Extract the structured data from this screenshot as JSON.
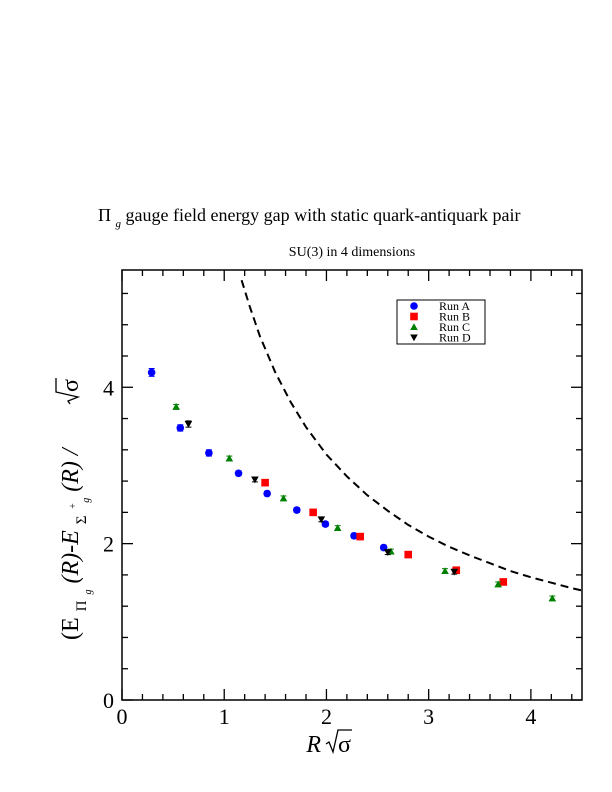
{
  "chart_data": {
    "type": "scatter",
    "title": {
      "pre": "Π",
      "sub": "g",
      "post": " gauge field energy gap with static quark-antiquark pair"
    },
    "subtitle": "SU(3) in 4 dimensions",
    "xlabel": {
      "var": "R",
      "sym": "σ"
    },
    "ylabel": {
      "open": "(E",
      "sub1": "Π",
      "sub1b": "g",
      "mid": "(R)-E",
      "sub2": "Σ",
      "sub2b": "g",
      "sup2": "+",
      "close": "(R) / ",
      "sym": "σ"
    },
    "xlim": [
      0,
      4.5
    ],
    "ylim": [
      0,
      5.5
    ],
    "xticks": [
      0,
      1,
      2,
      3,
      4
    ],
    "yticks": [
      0,
      2,
      4
    ],
    "xtick_labels": [
      "0",
      "1",
      "2",
      "3",
      "4"
    ],
    "ytick_labels": [
      "0",
      "2",
      "4"
    ],
    "legend_position": "top-right",
    "grid": false,
    "series": [
      {
        "name": "Run A",
        "marker": "circle",
        "color": "#0000ff",
        "x": [
          0.29,
          0.57,
          0.85,
          1.14,
          1.42,
          1.71,
          1.99,
          2.27,
          2.56
        ],
        "y": [
          4.19,
          3.48,
          3.16,
          2.9,
          2.64,
          2.43,
          2.25,
          2.1,
          1.95
        ],
        "err": [
          0.05,
          0.04,
          0.04,
          0.03,
          0.03,
          0.03,
          0.03,
          0.03,
          0.03
        ]
      },
      {
        "name": "Run B",
        "marker": "square",
        "color": "#ff0000",
        "x": [
          1.4,
          1.87,
          2.33,
          2.8,
          3.27,
          3.73
        ],
        "y": [
          2.78,
          2.4,
          2.09,
          1.86,
          1.66,
          1.51
        ],
        "err": [
          0.03,
          0.03,
          0.03,
          0.03,
          0.03,
          0.03
        ]
      },
      {
        "name": "Run C",
        "marker": "triangle-up",
        "color": "#008000",
        "x": [
          0.53,
          1.05,
          1.58,
          2.11,
          2.63,
          3.16,
          3.68,
          4.21
        ],
        "y": [
          3.75,
          3.09,
          2.58,
          2.2,
          1.9,
          1.65,
          1.48,
          1.3
        ],
        "err": [
          0.03,
          0.03,
          0.03,
          0.03,
          0.03,
          0.03,
          0.03,
          0.03
        ]
      },
      {
        "name": "Run D",
        "marker": "triangle-down",
        "color": "#000000",
        "x": [
          0.65,
          1.3,
          1.95,
          2.6,
          3.25
        ],
        "y": [
          3.53,
          2.82,
          2.31,
          1.89,
          1.64
        ],
        "err": [
          0.04,
          0.03,
          0.03,
          0.03,
          0.03
        ]
      }
    ],
    "reference_curve": {
      "style": "dashed",
      "color": "#000000",
      "x": [
        1.17,
        1.25,
        1.35,
        1.5,
        1.65,
        1.8,
        2.0,
        2.2,
        2.4,
        2.6,
        2.8,
        3.0,
        3.2,
        3.4,
        3.6,
        3.8,
        4.0,
        4.2,
        4.4,
        4.5
      ],
      "y": [
        5.37,
        5.03,
        4.65,
        4.19,
        3.81,
        3.49,
        3.14,
        2.86,
        2.62,
        2.42,
        2.24,
        2.09,
        1.96,
        1.85,
        1.75,
        1.65,
        1.57,
        1.5,
        1.43,
        1.4
      ]
    }
  }
}
